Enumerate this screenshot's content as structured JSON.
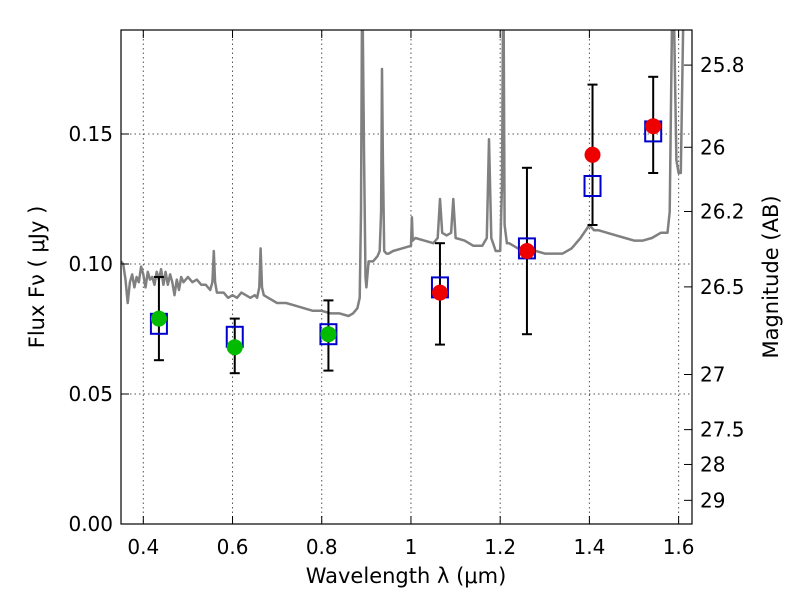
{
  "chart_data": {
    "type": "scatter",
    "xlabel": "Wavelength  λ (μm)",
    "ylabel": "Flux  Fν  ( μJy )",
    "ylabel_right": "Magnitude (AB)",
    "xlim": [
      0.35,
      1.63
    ],
    "ylim": [
      0.0,
      0.19
    ],
    "grid": true,
    "x_ticks": [
      0.4,
      0.6,
      0.8,
      1.0,
      1.2,
      1.4,
      1.6
    ],
    "x_tick_labels": [
      "0.4",
      "0.6",
      "0.8",
      "1",
      "1.2",
      "1.4",
      "1.6"
    ],
    "y_ticks": [
      0.0,
      0.05,
      0.1,
      0.15
    ],
    "y_tick_labels": [
      "0.00",
      "0.05",
      "0.10",
      "0.15"
    ],
    "right_ticks": [
      {
        "flux": 0.1765,
        "label": "25.8"
      },
      {
        "flux": 0.1449,
        "label": "26"
      },
      {
        "flux": 0.1202,
        "label": "26.2"
      },
      {
        "flux": 0.0912,
        "label": "26.5"
      },
      {
        "flux": 0.0575,
        "label": "27"
      },
      {
        "flux": 0.0363,
        "label": "27.5"
      },
      {
        "flux": 0.0229,
        "label": "28"
      },
      {
        "flux": 0.0091,
        "label": "29"
      }
    ],
    "colors": {
      "spectrum": "#808080",
      "model": "#0000cc",
      "green": "#00bb00",
      "red": "#ee0000",
      "errorbar": "#000000",
      "grid": "#555555"
    },
    "spectrum": {
      "x": [
        0.35,
        0.355,
        0.36,
        0.365,
        0.37,
        0.375,
        0.38,
        0.385,
        0.39,
        0.395,
        0.4,
        0.405,
        0.41,
        0.415,
        0.42,
        0.425,
        0.43,
        0.435,
        0.44,
        0.445,
        0.45,
        0.455,
        0.46,
        0.465,
        0.47,
        0.475,
        0.48,
        0.485,
        0.49,
        0.5,
        0.51,
        0.52,
        0.53,
        0.54,
        0.55,
        0.555,
        0.558,
        0.561,
        0.565,
        0.57,
        0.58,
        0.59,
        0.6,
        0.61,
        0.62,
        0.63,
        0.64,
        0.65,
        0.655,
        0.66,
        0.663,
        0.666,
        0.67,
        0.68,
        0.7,
        0.72,
        0.74,
        0.76,
        0.78,
        0.8,
        0.82,
        0.84,
        0.86,
        0.87,
        0.88,
        0.885,
        0.888,
        0.89,
        0.892,
        0.895,
        0.898,
        0.9,
        0.905,
        0.91,
        0.915,
        0.92,
        0.925,
        0.93,
        0.933,
        0.935,
        0.937,
        0.94,
        0.945,
        0.95,
        0.96,
        0.98,
        1.0,
        1.002,
        1.004,
        1.01,
        1.03,
        1.05,
        1.06,
        1.065,
        1.07,
        1.08,
        1.09,
        1.095,
        1.1,
        1.12,
        1.14,
        1.16,
        1.17,
        1.175,
        1.18,
        1.19,
        1.2,
        1.204,
        1.206,
        1.208,
        1.21,
        1.215,
        1.22,
        1.24,
        1.26,
        1.28,
        1.3,
        1.32,
        1.34,
        1.36,
        1.38,
        1.4,
        1.41,
        1.42,
        1.44,
        1.46,
        1.48,
        1.5,
        1.52,
        1.54,
        1.56,
        1.575,
        1.58,
        1.585,
        1.59,
        1.595,
        1.6,
        1.605,
        1.61
      ],
      "y": [
        0.101,
        0.1,
        0.094,
        0.085,
        0.093,
        0.096,
        0.091,
        0.095,
        0.093,
        0.099,
        0.096,
        0.091,
        0.097,
        0.094,
        0.095,
        0.092,
        0.097,
        0.094,
        0.098,
        0.092,
        0.097,
        0.092,
        0.096,
        0.093,
        0.088,
        0.094,
        0.09,
        0.095,
        0.093,
        0.095,
        0.093,
        0.094,
        0.092,
        0.092,
        0.09,
        0.093,
        0.105,
        0.093,
        0.089,
        0.089,
        0.089,
        0.087,
        0.088,
        0.087,
        0.089,
        0.088,
        0.087,
        0.088,
        0.087,
        0.091,
        0.106,
        0.091,
        0.088,
        0.087,
        0.085,
        0.085,
        0.084,
        0.083,
        0.082,
        0.082,
        0.081,
        0.081,
        0.08,
        0.081,
        0.083,
        0.087,
        0.12,
        0.19,
        0.19,
        0.14,
        0.095,
        0.091,
        0.101,
        0.101,
        0.101,
        0.102,
        0.103,
        0.105,
        0.12,
        0.175,
        0.14,
        0.105,
        0.104,
        0.104,
        0.105,
        0.106,
        0.107,
        0.118,
        0.109,
        0.11,
        0.109,
        0.108,
        0.11,
        0.125,
        0.112,
        0.111,
        0.112,
        0.125,
        0.11,
        0.109,
        0.107,
        0.107,
        0.11,
        0.148,
        0.11,
        0.105,
        0.105,
        0.13,
        0.19,
        0.19,
        0.115,
        0.108,
        0.108,
        0.106,
        0.106,
        0.105,
        0.104,
        0.104,
        0.104,
        0.106,
        0.11,
        0.115,
        0.113,
        0.113,
        0.112,
        0.111,
        0.11,
        0.109,
        0.109,
        0.11,
        0.112,
        0.112,
        0.12,
        0.19,
        0.19,
        0.14,
        0.135,
        0.135,
        0.19
      ]
    },
    "model_points": {
      "x": [
        0.435,
        0.605,
        0.815,
        1.065,
        1.26,
        1.407,
        1.543
      ],
      "y": [
        0.077,
        0.072,
        0.073,
        0.091,
        0.106,
        0.13,
        0.151
      ]
    },
    "photometry": [
      {
        "x": 0.435,
        "y": 0.079,
        "yerr_low": 0.063,
        "yerr_high": 0.095,
        "color": "green"
      },
      {
        "x": 0.605,
        "y": 0.068,
        "yerr_low": 0.058,
        "yerr_high": 0.079,
        "color": "green"
      },
      {
        "x": 0.815,
        "y": 0.073,
        "yerr_low": 0.059,
        "yerr_high": 0.086,
        "color": "green"
      },
      {
        "x": 1.065,
        "y": 0.089,
        "yerr_low": 0.069,
        "yerr_high": 0.108,
        "color": "red"
      },
      {
        "x": 1.26,
        "y": 0.105,
        "yerr_low": 0.073,
        "yerr_high": 0.137,
        "color": "red"
      },
      {
        "x": 1.407,
        "y": 0.142,
        "yerr_low": 0.115,
        "yerr_high": 0.169,
        "color": "red"
      },
      {
        "x": 1.543,
        "y": 0.153,
        "yerr_low": 0.135,
        "yerr_high": 0.172,
        "color": "red"
      }
    ]
  }
}
